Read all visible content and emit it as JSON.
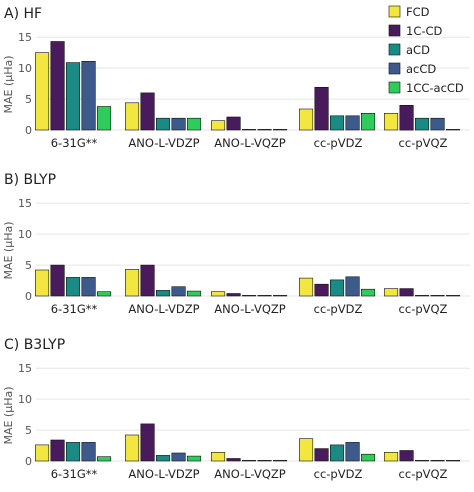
{
  "colors": {
    "FCD": "#f4e640",
    "1C-CD": "#4a1b5c",
    "aCD": "#1a8a85",
    "acCD": "#3d5a8c",
    "1CC-acCD": "#2ecc5a",
    "grid": "#e6e6e6",
    "axis_text": "#555555"
  },
  "legend": {
    "placement": "top-right",
    "entries": [
      "FCD",
      "1C-CD",
      "aCD",
      "acCD",
      "1CC-acCD"
    ]
  },
  "chart_data": [
    {
      "type": "bar",
      "title": "A) HF",
      "ylabel": "MAE (μHa)",
      "ylim": [
        0,
        16
      ],
      "yticks": [
        "0",
        "5",
        "10",
        "15"
      ],
      "grid": true,
      "categories": [
        "6-31G**",
        "ANO-L-VDZP",
        "ANO-L-VQZP",
        "cc-pVDZ",
        "cc-pVQZ"
      ],
      "series": [
        {
          "name": "FCD",
          "values": [
            12.5,
            4.4,
            1.5,
            3.4,
            2.7
          ]
        },
        {
          "name": "1C-CD",
          "values": [
            14.3,
            6.0,
            2.1,
            6.9,
            4.0
          ]
        },
        {
          "name": "aCD",
          "values": [
            10.9,
            1.9,
            0.1,
            2.3,
            1.9
          ]
        },
        {
          "name": "acCD",
          "values": [
            11.1,
            1.9,
            0.1,
            2.3,
            1.9
          ]
        },
        {
          "name": "1CC-acCD",
          "values": [
            3.8,
            1.9,
            0.05,
            2.7,
            0.1
          ]
        }
      ]
    },
    {
      "type": "bar",
      "title": "B) BLYP",
      "ylabel": "MAE (μHa)",
      "ylim": [
        0,
        16
      ],
      "yticks": [
        "0",
        "5",
        "10",
        "15"
      ],
      "grid": true,
      "categories": [
        "6-31G**",
        "ANO-L-VDZP",
        "ANO-L-VQZP",
        "cc-pVDZ",
        "cc-pVQZ"
      ],
      "series": [
        {
          "name": "FCD",
          "values": [
            4.2,
            4.3,
            0.7,
            2.9,
            1.2
          ]
        },
        {
          "name": "1C-CD",
          "values": [
            5.0,
            5.0,
            0.4,
            1.9,
            1.2
          ]
        },
        {
          "name": "aCD",
          "values": [
            3.0,
            0.9,
            0.05,
            2.6,
            0.1
          ]
        },
        {
          "name": "acCD",
          "values": [
            3.0,
            1.5,
            0.05,
            3.1,
            0.1
          ]
        },
        {
          "name": "1CC-acCD",
          "values": [
            0.7,
            0.8,
            0.02,
            1.1,
            0.05
          ]
        }
      ]
    },
    {
      "type": "bar",
      "title": "C) B3LYP",
      "ylabel": "MAE (μHa)",
      "ylim": [
        0,
        16
      ],
      "yticks": [
        "0",
        "5",
        "10",
        "15"
      ],
      "grid": true,
      "categories": [
        "6-31G**",
        "ANO-L-VDZP",
        "ANO-L-VQZP",
        "cc-pVDZ",
        "cc-pVQZ"
      ],
      "series": [
        {
          "name": "FCD",
          "values": [
            2.6,
            4.2,
            1.4,
            3.6,
            1.4
          ]
        },
        {
          "name": "1C-CD",
          "values": [
            3.4,
            6.0,
            0.4,
            2.0,
            1.7
          ]
        },
        {
          "name": "aCD",
          "values": [
            3.0,
            0.9,
            0.05,
            2.6,
            0.1
          ]
        },
        {
          "name": "acCD",
          "values": [
            3.0,
            1.3,
            0.05,
            3.0,
            0.1
          ]
        },
        {
          "name": "1CC-acCD",
          "values": [
            0.7,
            0.8,
            0.02,
            1.1,
            0.05
          ]
        }
      ]
    }
  ]
}
